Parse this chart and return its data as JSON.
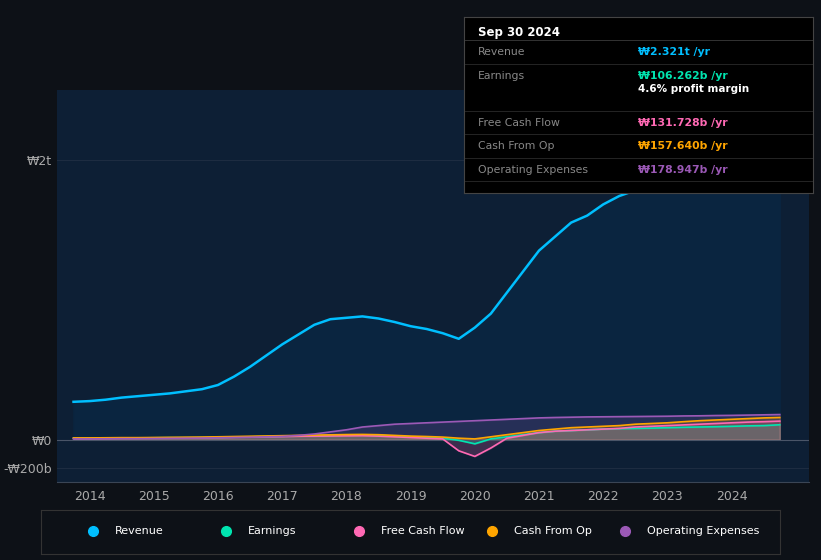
{
  "bg_color": "#0d1117",
  "plot_bg_color": "#0d1f35",
  "grid_color": "#1e2d42",
  "revenue_color": "#00bfff",
  "earnings_color": "#00e5b0",
  "fcf_color": "#ff69b4",
  "cashfromop_color": "#ffa500",
  "opex_color": "#9b59b6",
  "revenue_fill": "#0a2540",
  "years_x": [
    2013.75,
    2014.0,
    2014.25,
    2014.5,
    2014.75,
    2015.0,
    2015.25,
    2015.5,
    2015.75,
    2016.0,
    2016.25,
    2016.5,
    2016.75,
    2017.0,
    2017.25,
    2017.5,
    2017.75,
    2018.0,
    2018.25,
    2018.5,
    2018.75,
    2019.0,
    2019.25,
    2019.5,
    2019.75,
    2020.0,
    2020.25,
    2020.5,
    2020.75,
    2021.0,
    2021.25,
    2021.5,
    2021.75,
    2022.0,
    2022.25,
    2022.5,
    2022.75,
    2023.0,
    2023.25,
    2023.5,
    2023.75,
    2024.0,
    2024.25,
    2024.5,
    2024.75
  ],
  "revenue": [
    270,
    275,
    285,
    300,
    310,
    320,
    330,
    345,
    360,
    390,
    450,
    520,
    600,
    680,
    750,
    820,
    860,
    870,
    880,
    865,
    840,
    810,
    790,
    760,
    720,
    800,
    900,
    1050,
    1200,
    1350,
    1450,
    1550,
    1600,
    1680,
    1740,
    1780,
    1820,
    1860,
    1900,
    1950,
    1980,
    2000,
    2050,
    2150,
    2321
  ],
  "earnings": [
    10,
    10,
    11,
    12,
    12,
    13,
    14,
    14,
    15,
    16,
    18,
    20,
    22,
    24,
    26,
    28,
    30,
    32,
    33,
    30,
    25,
    20,
    15,
    10,
    -5,
    -30,
    5,
    20,
    35,
    50,
    60,
    65,
    70,
    75,
    78,
    80,
    82,
    85,
    88,
    90,
    92,
    95,
    98,
    100,
    106
  ],
  "fcf": [
    8,
    8,
    9,
    10,
    10,
    11,
    12,
    13,
    13,
    15,
    17,
    19,
    20,
    22,
    24,
    25,
    26,
    27,
    28,
    25,
    20,
    15,
    10,
    5,
    -80,
    -120,
    -60,
    10,
    30,
    50,
    60,
    65,
    70,
    75,
    80,
    90,
    95,
    100,
    105,
    110,
    115,
    120,
    125,
    128,
    132
  ],
  "cashfromop": [
    12,
    12,
    13,
    14,
    14,
    15,
    16,
    17,
    18,
    20,
    22,
    24,
    26,
    28,
    30,
    32,
    34,
    36,
    37,
    35,
    30,
    25,
    22,
    18,
    10,
    5,
    20,
    35,
    50,
    65,
    75,
    85,
    90,
    95,
    100,
    110,
    115,
    120,
    128,
    135,
    140,
    145,
    150,
    155,
    158
  ],
  "opex": [
    5,
    5,
    6,
    7,
    7,
    8,
    9,
    10,
    11,
    13,
    15,
    17,
    20,
    23,
    30,
    40,
    55,
    70,
    90,
    100,
    110,
    115,
    120,
    125,
    130,
    135,
    140,
    145,
    150,
    155,
    158,
    160,
    162,
    163,
    164,
    165,
    166,
    167,
    169,
    170,
    172,
    173,
    175,
    177,
    179
  ],
  "ylim_min": -300,
  "ylim_max": 2500,
  "yticks": [
    -200,
    0,
    2000
  ],
  "ytick_labels": [
    "-₩200b",
    "₩0",
    "₩2t"
  ],
  "xticks": [
    2014,
    2015,
    2016,
    2017,
    2018,
    2019,
    2020,
    2021,
    2022,
    2023,
    2024
  ],
  "info_box": {
    "date": "Sep 30 2024",
    "rows": [
      {
        "label": "Revenue",
        "value": "₩2.321t /yr",
        "value_color": "#00bfff",
        "sub_value": ""
      },
      {
        "label": "Earnings",
        "value": "₩106.262b /yr",
        "value_color": "#00e5b0",
        "sub_value": "4.6% profit margin"
      },
      {
        "label": "Free Cash Flow",
        "value": "₩131.728b /yr",
        "value_color": "#ff69b4",
        "sub_value": ""
      },
      {
        "label": "Cash From Op",
        "value": "₩157.640b /yr",
        "value_color": "#ffa500",
        "sub_value": ""
      },
      {
        "label": "Operating Expenses",
        "value": "₩178.947b /yr",
        "value_color": "#9b59b6",
        "sub_value": ""
      }
    ]
  },
  "legend": [
    {
      "label": "Revenue",
      "color": "#00bfff"
    },
    {
      "label": "Earnings",
      "color": "#00e5b0"
    },
    {
      "label": "Free Cash Flow",
      "color": "#ff69b4"
    },
    {
      "label": "Cash From Op",
      "color": "#ffa500"
    },
    {
      "label": "Operating Expenses",
      "color": "#9b59b6"
    }
  ]
}
